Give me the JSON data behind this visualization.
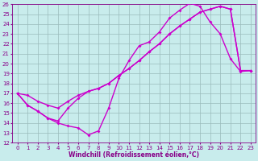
{
  "xlabel": "Windchill (Refroidissement éolien,°C)",
  "xlim": [
    -0.5,
    23.5
  ],
  "ylim": [
    12,
    26
  ],
  "xticks": [
    0,
    1,
    2,
    3,
    4,
    5,
    6,
    7,
    8,
    9,
    10,
    11,
    12,
    13,
    14,
    15,
    16,
    17,
    18,
    19,
    20,
    21,
    22,
    23
  ],
  "yticks": [
    12,
    13,
    14,
    15,
    16,
    17,
    18,
    19,
    20,
    21,
    22,
    23,
    24,
    25,
    26
  ],
  "background_color": "#c8ecec",
  "line_color": "#cc00cc",
  "line_width": 1.0,
  "marker": "D",
  "marker_size": 2.0,
  "grid_color": "#b0d0d0",
  "tick_labelsize": 5.0,
  "xlabel_fontsize": 5.5,
  "axis_color": "#880088",
  "line1_x": [
    0,
    1,
    2,
    3,
    4,
    5,
    6,
    7,
    8,
    9,
    10,
    11,
    12,
    13,
    14,
    15,
    16,
    17,
    18,
    19,
    20,
    21,
    22,
    23
  ],
  "line1_y": [
    17.0,
    15.8,
    15.2,
    14.5,
    14.0,
    13.7,
    13.5,
    12.8,
    13.2,
    15.5,
    18.5,
    20.3,
    21.8,
    22.2,
    23.2,
    24.6,
    25.4,
    26.1,
    25.8,
    24.2,
    23.0,
    20.5,
    19.2,
    19.3
  ],
  "line2_x": [
    0,
    1,
    2,
    3,
    4,
    5,
    6,
    7,
    8,
    9,
    10,
    11,
    12,
    13,
    14,
    15,
    16,
    17,
    18,
    19,
    20,
    21,
    22,
    23
  ],
  "line2_y": [
    17.0,
    16.8,
    16.2,
    15.8,
    15.5,
    16.2,
    16.8,
    17.2,
    17.5,
    18.0,
    18.8,
    19.5,
    20.3,
    21.2,
    22.0,
    23.0,
    23.8,
    24.5,
    25.2,
    25.5,
    25.8,
    25.5,
    19.3,
    19.3
  ],
  "line3_x": [
    0,
    1,
    2,
    3,
    4,
    5,
    6,
    7,
    8,
    9,
    10,
    11,
    12,
    13,
    14,
    15,
    16,
    17,
    18,
    19,
    20,
    21,
    22,
    23
  ],
  "line3_y": [
    17.0,
    15.8,
    15.2,
    14.5,
    14.2,
    15.5,
    16.5,
    17.2,
    17.5,
    18.0,
    18.8,
    19.5,
    20.3,
    21.2,
    22.0,
    23.0,
    23.8,
    24.5,
    25.2,
    25.5,
    25.8,
    25.5,
    19.3,
    19.3
  ]
}
